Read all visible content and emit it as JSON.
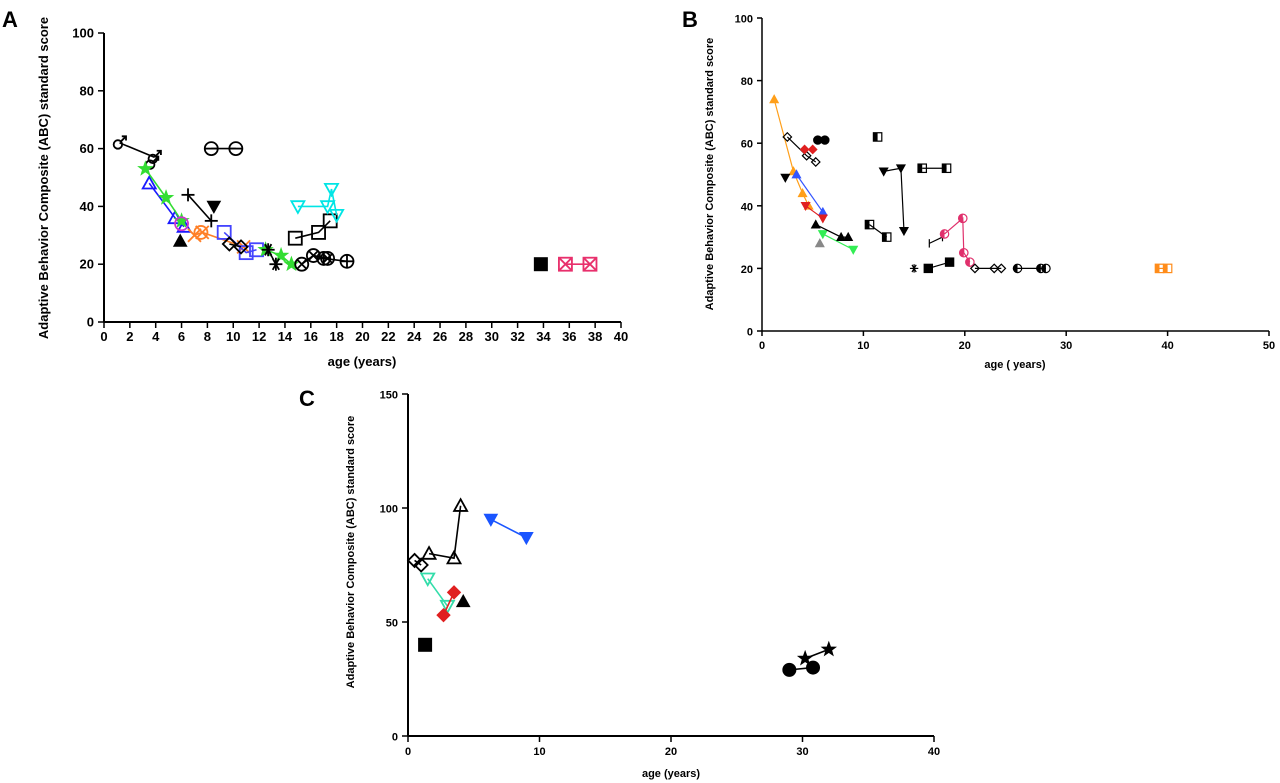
{
  "chart_data": [
    {
      "panel": "A",
      "type": "line",
      "title": "",
      "xlabel": "age (years)",
      "ylabel": "Adaptive Behavior Composite (ABC) standard score",
      "xlim": [
        0,
        40
      ],
      "ylim": [
        0,
        100
      ],
      "xticks": [
        0,
        2,
        4,
        6,
        8,
        10,
        12,
        14,
        16,
        18,
        20,
        22,
        24,
        26,
        28,
        30,
        32,
        34,
        36,
        38,
        40
      ],
      "yticks": [
        0,
        20,
        40,
        60,
        80,
        100
      ],
      "series": [
        {
          "color": "#000000",
          "marker": "male",
          "x": [
            1.2,
            3.9
          ],
          "y": [
            62,
            57
          ]
        },
        {
          "color": "#000000",
          "marker": "male",
          "x": [
            3.7
          ],
          "y": [
            55
          ]
        },
        {
          "color": "#000000",
          "marker": "circle-line",
          "x": [
            8.3,
            10.2
          ],
          "y": [
            60,
            60
          ]
        },
        {
          "color": "#1a1aff",
          "marker": "triangle-up",
          "x": [
            3.5,
            5.5,
            6.2
          ],
          "y": [
            48,
            36,
            33
          ]
        },
        {
          "color": "#33dd33",
          "marker": "star",
          "x": [
            3.2,
            4.8,
            6.0
          ],
          "y": [
            53,
            43,
            35
          ]
        },
        {
          "color": "#cc33cc",
          "marker": "circle",
          "x": [
            6.0
          ],
          "y": [
            34
          ]
        },
        {
          "color": "#000000",
          "marker": "plus",
          "x": [
            6.5,
            8.3
          ],
          "y": [
            44,
            35
          ]
        },
        {
          "color": "#000000",
          "marker": "triangle-down-filled",
          "x": [
            8.5
          ],
          "y": [
            40
          ]
        },
        {
          "color": "#000000",
          "marker": "triangle-filled",
          "x": [
            5.9
          ],
          "y": [
            28
          ]
        },
        {
          "color": "#ff7f27",
          "marker": "x",
          "x": [
            7.0,
            7.6,
            10.8
          ],
          "y": [
            30,
            31,
            26
          ]
        },
        {
          "color": "#ff7f27",
          "marker": "circle",
          "x": [
            7.5
          ],
          "y": [
            31
          ]
        },
        {
          "color": "#4444ff",
          "marker": "square",
          "x": [
            9.3,
            11.0,
            11.8
          ],
          "y": [
            31,
            24,
            25
          ]
        },
        {
          "color": "#000000",
          "marker": "diamond",
          "x": [
            9.7,
            10.6
          ],
          "y": [
            27,
            26
          ]
        },
        {
          "color": "#33dd33",
          "marker": "star",
          "x": [
            12.5,
            13.7,
            14.5
          ],
          "y": [
            25,
            23,
            20
          ]
        },
        {
          "color": "#000000",
          "marker": "asterisk",
          "x": [
            12.7,
            13.3
          ],
          "y": [
            25,
            20
          ]
        },
        {
          "color": "#000000",
          "marker": "square",
          "x": [
            14.8,
            16.6,
            17.5
          ],
          "y": [
            29,
            31,
            35
          ]
        },
        {
          "color": "#000000",
          "marker": "circle-x",
          "x": [
            15.3,
            16.2,
            17.3
          ],
          "y": [
            20,
            23,
            22
          ]
        },
        {
          "color": "#000000",
          "marker": "circle-plus",
          "x": [
            17.0,
            18.8
          ],
          "y": [
            22,
            21
          ]
        },
        {
          "color": "#00e5e5",
          "marker": "triangle-down",
          "x": [
            15.0,
            17.3,
            17.6,
            18.0
          ],
          "y": [
            40,
            40,
            46,
            37
          ]
        },
        {
          "color": "#000000",
          "marker": "square-filled",
          "x": [
            33.8
          ],
          "y": [
            20
          ]
        },
        {
          "color": "#e8306c",
          "marker": "square-x",
          "x": [
            35.7,
            37.6
          ],
          "y": [
            20,
            20
          ]
        }
      ]
    },
    {
      "panel": "B",
      "type": "line",
      "title": "",
      "xlabel": "age ( years)",
      "ylabel": "Adaptive Behavior Composite (ABC) standard score",
      "xlim": [
        0,
        50
      ],
      "ylim": [
        0,
        100
      ],
      "xticks": [
        0,
        10,
        20,
        30,
        40,
        50
      ],
      "yticks": [
        0,
        20,
        40,
        60,
        80,
        100
      ],
      "series": [
        {
          "color": "#ff9f1a",
          "marker": "triangle-filled",
          "x": [
            1.2,
            3.1,
            4.0,
            4.6
          ],
          "y": [
            74,
            51,
            44,
            40
          ]
        },
        {
          "color": "#000000",
          "marker": "diamond",
          "x": [
            2.5,
            4.4,
            5.3
          ],
          "y": [
            62,
            56,
            54
          ]
        },
        {
          "color": "#000000",
          "marker": "triangle-down-filled",
          "x": [
            2.3
          ],
          "y": [
            49
          ]
        },
        {
          "color": "#e02020",
          "marker": "diamond-filled",
          "x": [
            4.2,
            5.0
          ],
          "y": [
            58,
            58
          ]
        },
        {
          "color": "#000000",
          "marker": "circle-filled",
          "x": [
            5.5,
            6.2
          ],
          "y": [
            61,
            61
          ]
        },
        {
          "color": "#3355ff",
          "marker": "triangle-filled",
          "x": [
            3.4,
            6.0
          ],
          "y": [
            50,
            38
          ]
        },
        {
          "color": "#e02020",
          "marker": "triangle-down-filled",
          "x": [
            4.3,
            6.0
          ],
          "y": [
            40,
            36
          ]
        },
        {
          "color": "#33ee55",
          "marker": "triangle-down-filled",
          "x": [
            6.0,
            9.0
          ],
          "y": [
            31,
            26
          ]
        },
        {
          "color": "#000000",
          "marker": "triangle-filled",
          "x": [
            5.3,
            7.8,
            8.5
          ],
          "y": [
            34,
            30,
            30
          ]
        },
        {
          "color": "#888888",
          "marker": "triangle-filled",
          "x": [
            5.7
          ],
          "y": [
            28
          ]
        },
        {
          "color": "#000000",
          "marker": "square-half",
          "x": [
            11.4
          ],
          "y": [
            62
          ]
        },
        {
          "color": "#000000",
          "marker": "square-half",
          "x": [
            10.6,
            12.3
          ],
          "y": [
            34,
            30
          ]
        },
        {
          "color": "#000000",
          "marker": "triangle-down-filled",
          "x": [
            12.0,
            13.7,
            14.0
          ],
          "y": [
            51,
            52,
            32
          ]
        },
        {
          "color": "#000000",
          "marker": "square-half",
          "x": [
            15.8,
            18.2
          ],
          "y": [
            52,
            52
          ]
        },
        {
          "color": "#000000",
          "marker": "square-filled",
          "x": [
            16.4,
            18.5
          ],
          "y": [
            20,
            22
          ]
        },
        {
          "color": "#000000",
          "marker": "asterisk",
          "x": [
            15.0
          ],
          "y": [
            20
          ]
        },
        {
          "color": "#000000",
          "marker": "bar",
          "x": [
            16.5,
            17.8
          ],
          "y": [
            28,
            30
          ]
        },
        {
          "color": "#e0306c",
          "marker": "circle-half",
          "x": [
            18.0,
            19.8,
            19.9,
            20.5
          ],
          "y": [
            31,
            36,
            25,
            22
          ]
        },
        {
          "color": "#000000",
          "marker": "diamond",
          "x": [
            21.0,
            22.9,
            23.6
          ],
          "y": [
            20,
            20,
            20
          ]
        },
        {
          "color": "#000000",
          "marker": "circle-half",
          "x": [
            25.2,
            27.5,
            28.0
          ],
          "y": [
            20,
            20,
            20
          ]
        },
        {
          "color": "#ff8c1a",
          "marker": "square-half",
          "x": [
            39.2,
            40.0
          ],
          "y": [
            20,
            20
          ]
        }
      ]
    },
    {
      "panel": "C",
      "type": "line",
      "title": "",
      "xlabel": "age (years)",
      "ylabel": "Adaptive Behavior Composite (ABC) standard score",
      "xlim": [
        0,
        40
      ],
      "ylim": [
        0,
        150
      ],
      "xticks": [
        0,
        10,
        20,
        30,
        40
      ],
      "yticks": [
        0,
        50,
        100,
        150
      ],
      "series": [
        {
          "color": "#000000",
          "marker": "diamond",
          "x": [
            0.5,
            1.0
          ],
          "y": [
            77,
            75
          ]
        },
        {
          "color": "#000000",
          "marker": "triangle-up",
          "x": [
            1.6,
            3.5,
            4.0
          ],
          "y": [
            80,
            78,
            101
          ]
        },
        {
          "color": "#33ddaa",
          "marker": "triangle-down",
          "x": [
            1.5,
            3.0
          ],
          "y": [
            69,
            57
          ]
        },
        {
          "color": "#e02020",
          "marker": "diamond-filled",
          "x": [
            2.7,
            3.5
          ],
          "y": [
            53,
            63
          ]
        },
        {
          "color": "#000000",
          "marker": "triangle-filled",
          "x": [
            4.2
          ],
          "y": [
            59
          ]
        },
        {
          "color": "#000000",
          "marker": "square-filled",
          "x": [
            1.3
          ],
          "y": [
            40
          ]
        },
        {
          "color": "#1a55ff",
          "marker": "triangle-down-filled",
          "x": [
            6.3,
            9.0
          ],
          "y": [
            95,
            87
          ]
        },
        {
          "color": "#000000",
          "marker": "circle-filled",
          "x": [
            29.0,
            30.8
          ],
          "y": [
            29,
            30
          ]
        },
        {
          "color": "#000000",
          "marker": "star-filled",
          "x": [
            30.2,
            32.0
          ],
          "y": [
            34,
            38
          ]
        }
      ]
    }
  ]
}
